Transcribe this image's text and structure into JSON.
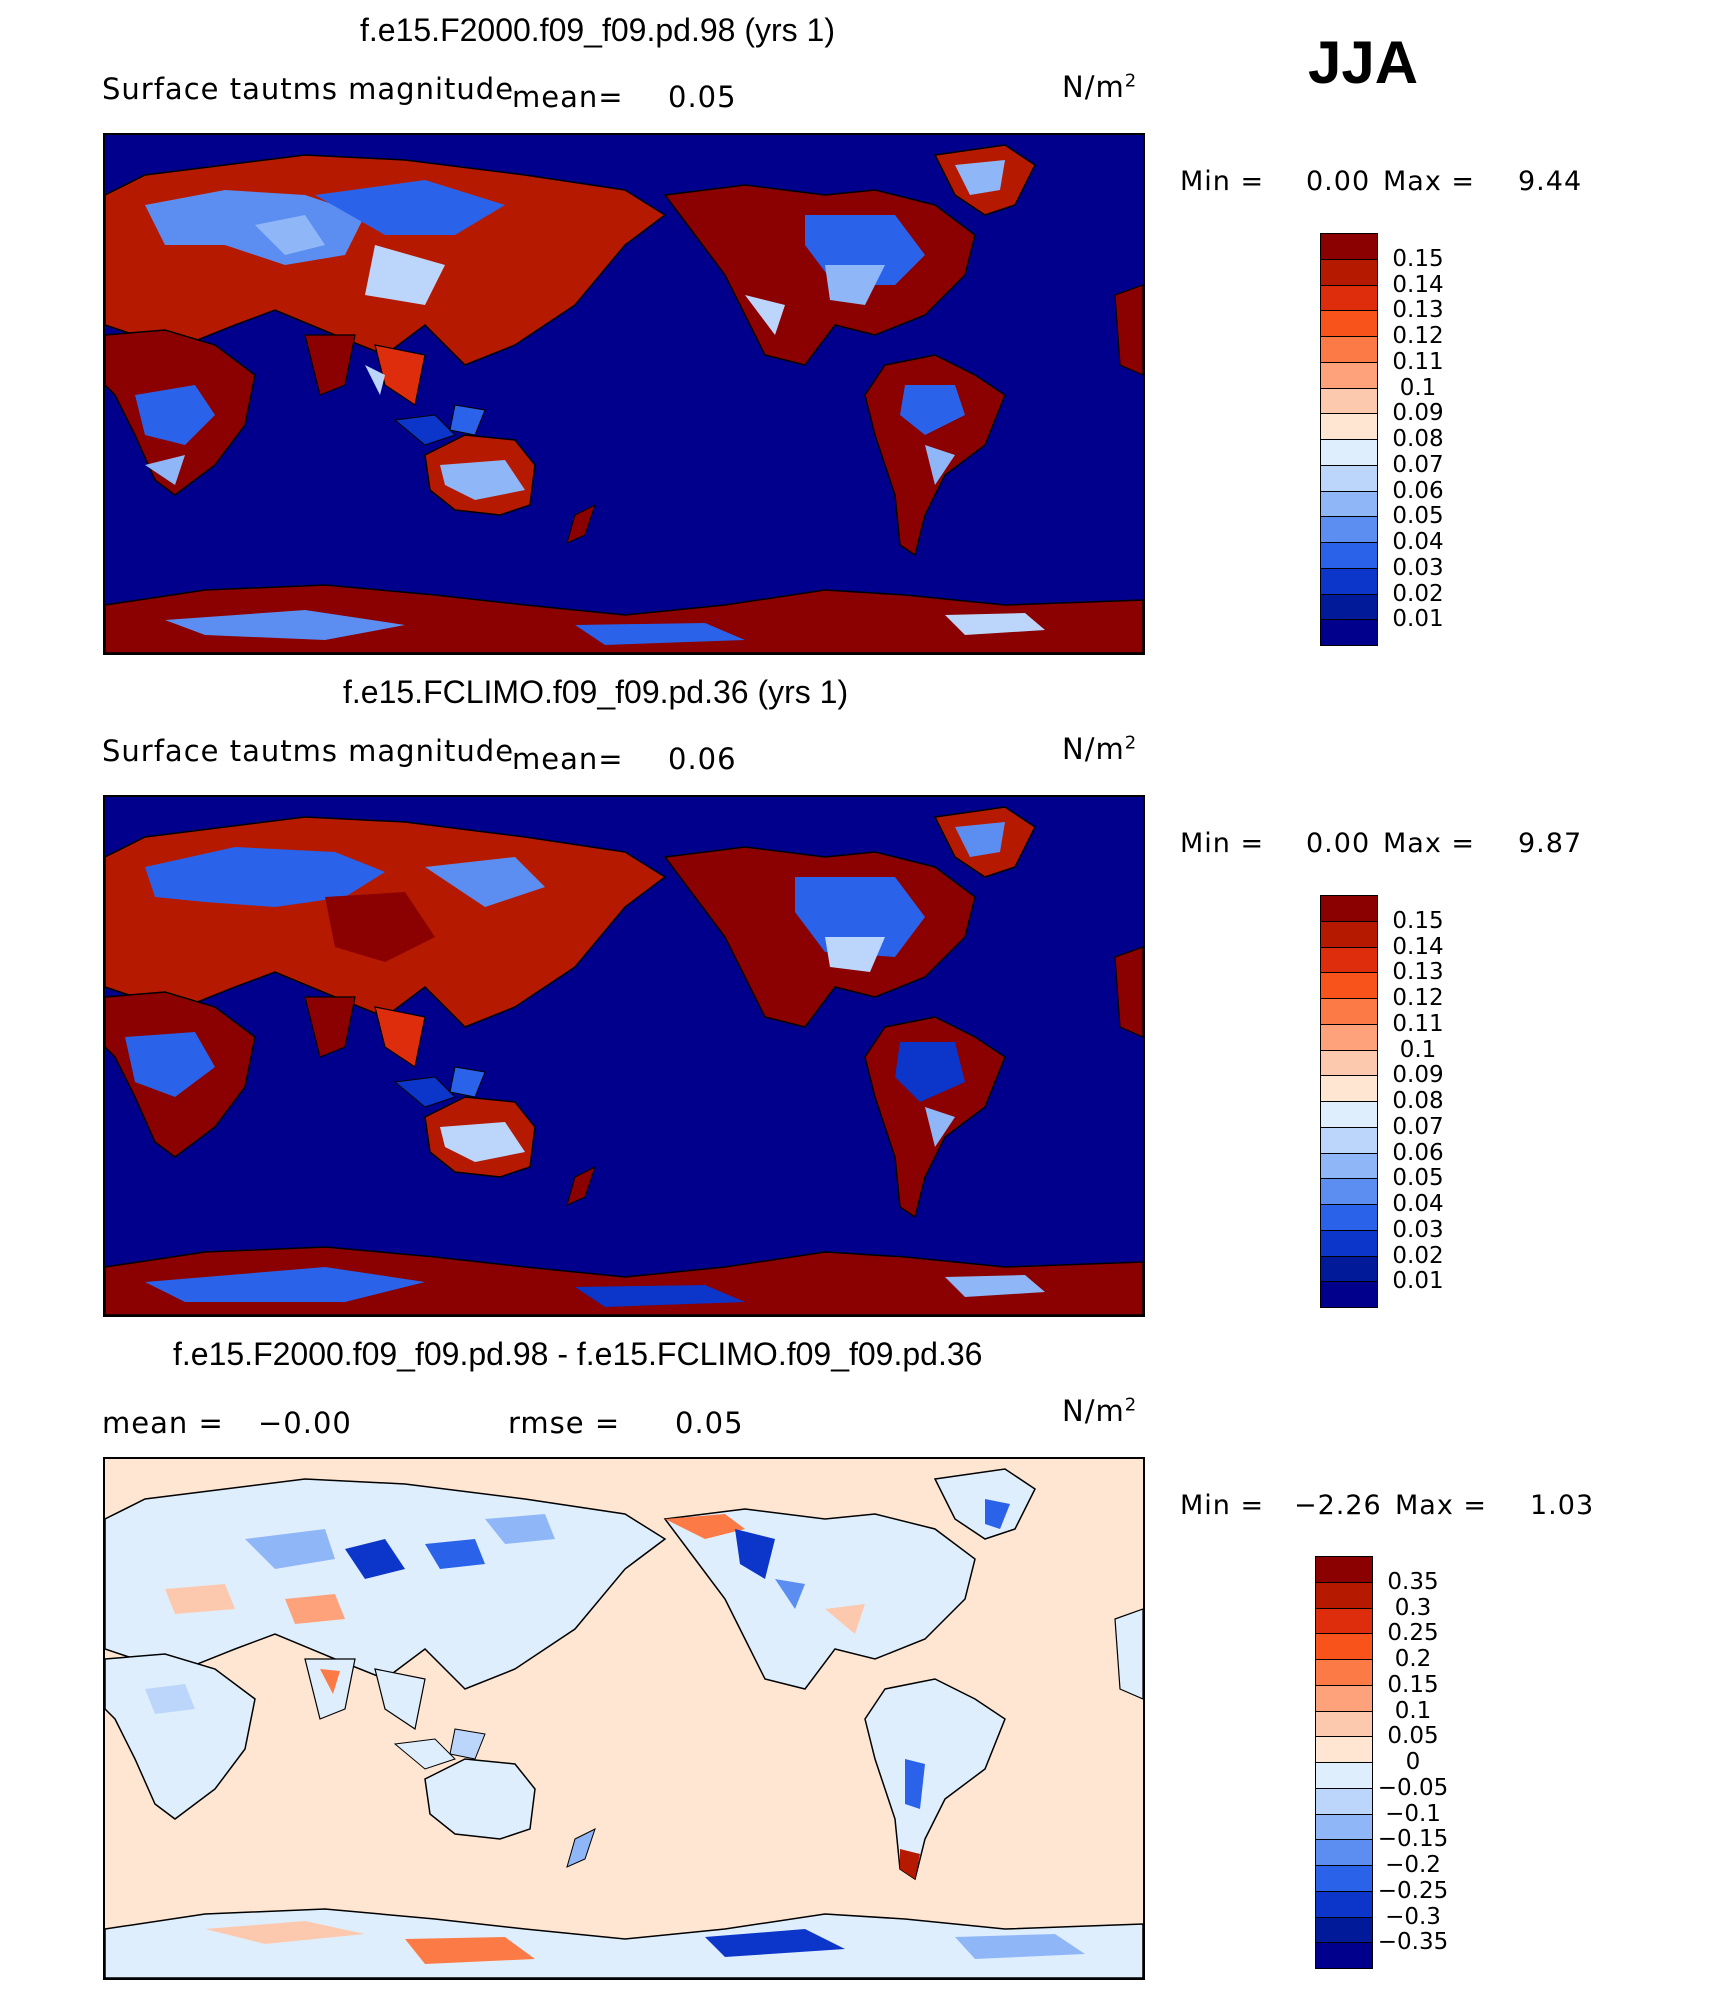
{
  "season": "JJA",
  "panels": [
    {
      "title": "f.e15.F2000.f09_f09.pd.98 (yrs 1)",
      "left_label": "Surface tautms magnitude",
      "mean_label": "mean=",
      "mean_value": "0.05",
      "units_base": "N/m",
      "units_exp": "2",
      "min_label": "Min  =",
      "min_value": "0.00",
      "max_label": "Max  =",
      "max_value": "9.44",
      "ocean_color": "#00008c"
    },
    {
      "title": "f.e15.FCLIMO.f09_f09.pd.36 (yrs 1)",
      "left_label": "Surface tautms magnitude",
      "mean_label": "mean=",
      "mean_value": "0.06",
      "units_base": "N/m",
      "units_exp": "2",
      "min_label": "Min  =",
      "min_value": "0.00",
      "max_label": "Max  =",
      "max_value": "9.87",
      "ocean_color": "#00008c"
    },
    {
      "title": "f.e15.F2000.f09_f09.pd.98 - f.e15.FCLIMO.f09_f09.pd.36",
      "mean_label": "mean  =",
      "mean_value": "−0.00",
      "rmse_label": "rmse  =",
      "rmse_value": "0.05",
      "units_base": "N/m",
      "units_exp": "2",
      "min_label": "Min  =",
      "min_value": "−2.26",
      "max_label": "Max  =",
      "max_value": "1.03",
      "ocean_color": "#fee6d2"
    }
  ],
  "colorbars": [
    {
      "labels": [
        "0.15",
        "0.14",
        "0.13",
        "0.12",
        "0.11",
        "0.1",
        "0.09",
        "0.08",
        "0.07",
        "0.06",
        "0.05",
        "0.04",
        "0.03",
        "0.02",
        "0.01"
      ],
      "colors": [
        "#8b0000",
        "#b51a00",
        "#de2d0d",
        "#f7531b",
        "#fb7a45",
        "#fda27a",
        "#fdc9ae",
        "#fee6d2",
        "#dfeefc",
        "#bcd6fb",
        "#8fb7f8",
        "#5b8ef0",
        "#2a62ea",
        "#0c35c9",
        "#001a9a",
        "#00008c"
      ]
    },
    {
      "labels": [
        "0.15",
        "0.14",
        "0.13",
        "0.12",
        "0.11",
        "0.1",
        "0.09",
        "0.08",
        "0.07",
        "0.06",
        "0.05",
        "0.04",
        "0.03",
        "0.02",
        "0.01"
      ],
      "colors": [
        "#8b0000",
        "#b51a00",
        "#de2d0d",
        "#f7531b",
        "#fb7a45",
        "#fda27a",
        "#fdc9ae",
        "#fee6d2",
        "#dfeefc",
        "#bcd6fb",
        "#8fb7f8",
        "#5b8ef0",
        "#2a62ea",
        "#0c35c9",
        "#001a9a",
        "#00008c"
      ]
    },
    {
      "labels": [
        "0.35",
        "0.3",
        "0.25",
        "0.2",
        "0.15",
        "0.1",
        "0.05",
        "0",
        "−0.05",
        "−0.1",
        "−0.15",
        "−0.2",
        "−0.25",
        "−0.3",
        "−0.35"
      ],
      "colors": [
        "#8b0000",
        "#b51a00",
        "#de2d0d",
        "#f7531b",
        "#fb7a45",
        "#fda27a",
        "#fdc9ae",
        "#fee6d2",
        "#dfeefc",
        "#bcd6fb",
        "#8fb7f8",
        "#5b8ef0",
        "#2a62ea",
        "#0c35c9",
        "#001a9a",
        "#00008c"
      ]
    }
  ]
}
